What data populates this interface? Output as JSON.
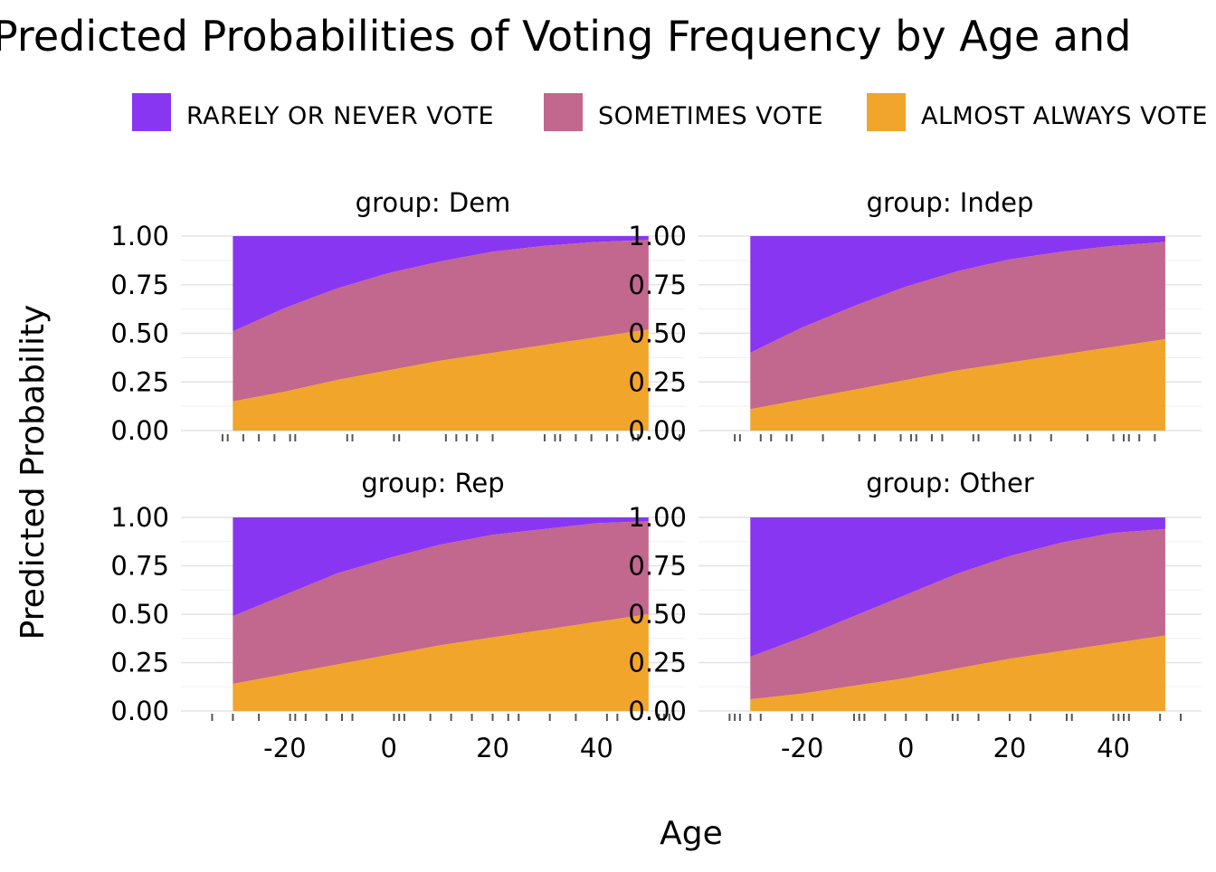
{
  "chart_data": {
    "type": "area",
    "stacked": true,
    "title": "Predicted Probabilities of Voting Frequency by Age and",
    "xlabel": "Age",
    "ylabel": "Predicted Probability",
    "xlim": [
      -40,
      57
    ],
    "ylim": [
      0,
      1
    ],
    "x_ticks": [
      "-20",
      "0",
      "20",
      "40"
    ],
    "y_ticks": [
      "0.00",
      "0.25",
      "0.50",
      "0.75",
      "1.00"
    ],
    "legend_position": "top",
    "legend": [
      {
        "label": "RARELY OR NEVER VOTE",
        "color": "#8936f3"
      },
      {
        "label": "SOMETIMES VOTE",
        "color": "#c2678d"
      },
      {
        "label": "ALMOST ALWAYS VOTE",
        "color": "#f1a52b"
      }
    ],
    "stack_order_bottom_to_top": [
      "ALMOST ALWAYS VOTE",
      "SOMETIMES VOTE",
      "RARELY OR NEVER VOTE"
    ],
    "x": [
      -30,
      -20,
      -10,
      0,
      10,
      20,
      30,
      40,
      50
    ],
    "panels": [
      {
        "strip": "group: Dem",
        "almost_always": [
          0.15,
          0.2,
          0.26,
          0.31,
          0.36,
          0.4,
          0.44,
          0.48,
          0.52
        ],
        "cumulative_sometimes": [
          0.51,
          0.63,
          0.73,
          0.81,
          0.87,
          0.92,
          0.95,
          0.97,
          0.98
        ],
        "rug": [
          -32,
          -31,
          -28,
          -25,
          -22,
          -19,
          -18,
          -8,
          -7,
          1,
          2,
          11,
          13,
          15,
          17,
          20,
          30,
          32,
          33,
          36,
          39,
          42,
          44,
          47,
          48,
          56
        ]
      },
      {
        "strip": "group: Indep",
        "almost_always": [
          0.11,
          0.16,
          0.21,
          0.26,
          0.31,
          0.35,
          0.39,
          0.43,
          0.47
        ],
        "cumulative_sometimes": [
          0.4,
          0.53,
          0.64,
          0.74,
          0.82,
          0.88,
          0.92,
          0.95,
          0.97
        ],
        "rug": [
          -33,
          -32,
          -28,
          -26,
          -23,
          -22,
          -16,
          -9,
          -6,
          -1,
          1,
          2,
          5,
          7,
          13,
          14,
          21,
          22,
          24,
          28,
          35,
          40,
          42,
          43,
          45,
          48
        ]
      },
      {
        "strip": "group: Rep",
        "almost_always": [
          0.14,
          0.19,
          0.24,
          0.29,
          0.34,
          0.38,
          0.42,
          0.46,
          0.5
        ],
        "cumulative_sometimes": [
          0.49,
          0.6,
          0.71,
          0.79,
          0.86,
          0.91,
          0.94,
          0.97,
          0.98
        ],
        "rug": [
          -34,
          -30,
          -25,
          -19,
          -18,
          -16,
          -12,
          -9,
          -7,
          1,
          2,
          3,
          8,
          12,
          16,
          20,
          23,
          25,
          31,
          36,
          42,
          44,
          52,
          53,
          54
        ]
      },
      {
        "strip": "group: Other",
        "almost_always": [
          0.06,
          0.09,
          0.13,
          0.17,
          0.22,
          0.27,
          0.31,
          0.35,
          0.39
        ],
        "cumulative_sometimes": [
          0.28,
          0.38,
          0.49,
          0.6,
          0.71,
          0.8,
          0.87,
          0.92,
          0.94
        ],
        "rug": [
          -34,
          -33,
          -32,
          -30,
          -28,
          -22,
          -20,
          -18,
          -10,
          -9,
          -8,
          -4,
          0,
          4,
          9,
          10,
          14,
          20,
          24,
          31,
          32,
          40,
          41,
          42,
          43,
          49,
          53
        ]
      }
    ]
  }
}
